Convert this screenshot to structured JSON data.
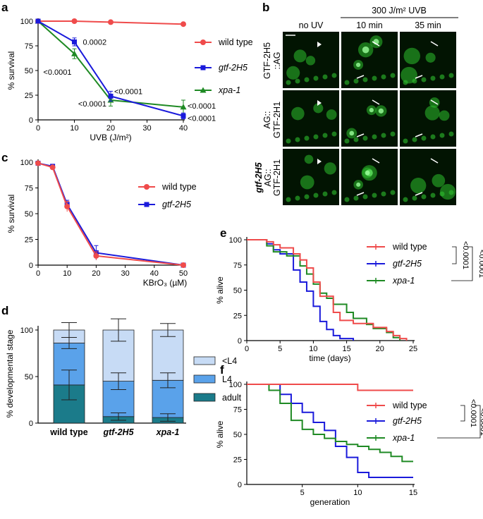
{
  "panels": {
    "a": "a",
    "b": "b",
    "c": "c",
    "d": "d",
    "e": "e",
    "f": "f"
  },
  "colors": {
    "wild_type": "#ef4b4b",
    "gtf_2H5": "#1a1adb",
    "xpa_1": "#1f8a24",
    "l4_dark": "#5aa2ea",
    "l4_light": "#c7dbf5",
    "adult": "#1b7b8a",
    "cell": "#2ec02e"
  },
  "chart_data": [
    {
      "id": "a",
      "type": "line",
      "xlabel": "UVB (J/m²)",
      "ylabel": "% survival",
      "x": [
        0,
        10,
        20,
        40
      ],
      "xlim": [
        0,
        40
      ],
      "ylim": [
        0,
        100
      ],
      "xticks": [
        0,
        10,
        20,
        30,
        40
      ],
      "yticks": [
        0,
        25,
        50,
        75,
        100
      ],
      "series": [
        {
          "name": "wild type",
          "values": [
            100,
            100,
            99,
            97
          ],
          "err": [
            0,
            1,
            1,
            1
          ],
          "marker": "circle",
          "color": "#ef4b4b"
        },
        {
          "name": "gtf-2H5",
          "values": [
            100,
            79,
            24,
            4
          ],
          "err": [
            0,
            4,
            5,
            3
          ],
          "marker": "square",
          "color": "#1a1adb"
        },
        {
          "name": "xpa-1",
          "values": [
            100,
            67,
            20,
            13
          ],
          "err": [
            0,
            5,
            6,
            7
          ],
          "marker": "triangle",
          "color": "#1f8a24"
        }
      ],
      "annotations": [
        "0.0002",
        "<0.0001",
        "<0.0001",
        "<0.0001",
        "<0.0001",
        "<0.0001"
      ]
    },
    {
      "id": "c",
      "type": "line",
      "xlabel": "KBrO₃ (µM)",
      "ylabel": "% survival",
      "x": [
        0,
        5,
        10,
        20,
        50
      ],
      "xlim": [
        0,
        50
      ],
      "ylim": [
        0,
        100
      ],
      "xticks": [
        0,
        10,
        20,
        30,
        40,
        50
      ],
      "yticks": [
        0,
        25,
        50,
        75,
        100
      ],
      "series": [
        {
          "name": "wild type",
          "values": [
            99,
            95,
            57,
            9,
            0
          ],
          "err": [
            1,
            1,
            5,
            4,
            0
          ],
          "marker": "circle",
          "color": "#ef4b4b"
        },
        {
          "name": "gtf-2H5",
          "values": [
            99,
            96,
            59,
            12,
            0
          ],
          "err": [
            1,
            1,
            4,
            7,
            0
          ],
          "marker": "square",
          "color": "#1a1adb"
        }
      ]
    },
    {
      "id": "d",
      "type": "bar",
      "ylabel": "% developmental stage",
      "categories": [
        "wild type",
        "gtf-2H5",
        "xpa-1"
      ],
      "ylim": [
        0,
        100
      ],
      "yticks": [
        0,
        50,
        100
      ],
      "series": [
        {
          "name": "adult",
          "values": [
            41,
            7,
            6
          ],
          "err": [
            16,
            4,
            4
          ]
        },
        {
          "name": "L4",
          "values": [
            45,
            38,
            40
          ],
          "err": [
            6,
            9,
            8
          ]
        },
        {
          "name": "<L4",
          "values": [
            14,
            55,
            54
          ],
          "err": [
            8,
            12,
            7
          ]
        }
      ],
      "legend_order": [
        "<L4",
        "L4",
        "adult"
      ]
    },
    {
      "id": "e",
      "type": "line",
      "xlabel": "time (days)",
      "ylabel": "% alive",
      "xlim": [
        0,
        25
      ],
      "ylim": [
        0,
        100
      ],
      "xticks": [
        0,
        5,
        10,
        15,
        20,
        25
      ],
      "yticks": [
        0,
        25,
        50,
        75,
        100
      ],
      "series": [
        {
          "name": "wild type",
          "color": "#ef4b4b",
          "steps": [
            [
              0,
              100
            ],
            [
              3,
              100
            ],
            [
              3,
              98
            ],
            [
              4,
              98
            ],
            [
              4,
              95
            ],
            [
              5,
              95
            ],
            [
              5,
              92
            ],
            [
              7,
              92
            ],
            [
              7,
              86
            ],
            [
              8,
              86
            ],
            [
              8,
              80
            ],
            [
              9,
              80
            ],
            [
              9,
              72
            ],
            [
              10,
              72
            ],
            [
              10,
              58
            ],
            [
              11,
              58
            ],
            [
              11,
              44
            ],
            [
              13,
              44
            ],
            [
              13,
              28
            ],
            [
              14,
              28
            ],
            [
              14,
              20
            ],
            [
              16,
              20
            ],
            [
              16,
              17
            ],
            [
              19,
              17
            ],
            [
              19,
              13
            ],
            [
              21,
              13
            ],
            [
              21,
              9
            ],
            [
              22,
              9
            ],
            [
              22,
              5
            ],
            [
              23,
              5
            ],
            [
              23,
              2
            ],
            [
              24,
              2
            ],
            [
              24,
              0
            ]
          ]
        },
        {
          "name": "gtf-2H5",
          "color": "#1a1adb",
          "steps": [
            [
              0,
              100
            ],
            [
              3,
              100
            ],
            [
              3,
              96
            ],
            [
              4,
              96
            ],
            [
              4,
              90
            ],
            [
              5,
              90
            ],
            [
              5,
              86
            ],
            [
              7,
              86
            ],
            [
              7,
              70
            ],
            [
              8,
              70
            ],
            [
              8,
              58
            ],
            [
              9,
              58
            ],
            [
              9,
              49
            ],
            [
              10,
              49
            ],
            [
              10,
              34
            ],
            [
              11,
              34
            ],
            [
              11,
              19
            ],
            [
              12,
              19
            ],
            [
              12,
              11
            ],
            [
              13,
              11
            ],
            [
              13,
              5
            ],
            [
              14,
              5
            ],
            [
              14,
              2
            ],
            [
              16,
              2
            ],
            [
              16,
              0
            ]
          ]
        },
        {
          "name": "xpa-1",
          "color": "#1f8a24",
          "steps": [
            [
              0,
              100
            ],
            [
              3,
              100
            ],
            [
              3,
              94
            ],
            [
              4,
              94
            ],
            [
              4,
              88
            ],
            [
              6,
              88
            ],
            [
              6,
              84
            ],
            [
              8,
              84
            ],
            [
              8,
              74
            ],
            [
              9,
              74
            ],
            [
              9,
              66
            ],
            [
              10,
              66
            ],
            [
              10,
              56
            ],
            [
              11,
              56
            ],
            [
              11,
              47
            ],
            [
              12,
              47
            ],
            [
              12,
              42
            ],
            [
              13,
              42
            ],
            [
              13,
              36
            ],
            [
              15,
              36
            ],
            [
              15,
              28
            ],
            [
              16,
              28
            ],
            [
              16,
              22
            ],
            [
              18,
              22
            ],
            [
              18,
              16
            ],
            [
              19,
              16
            ],
            [
              19,
              12
            ],
            [
              21,
              12
            ],
            [
              21,
              8
            ],
            [
              22,
              8
            ],
            [
              22,
              3
            ],
            [
              23,
              3
            ],
            [
              23,
              0
            ]
          ]
        }
      ],
      "stats": [
        "<0.0001",
        "<0.0001"
      ]
    },
    {
      "id": "f",
      "type": "line",
      "xlabel": "generation",
      "ylabel": "% alive",
      "xlim": [
        0,
        15
      ],
      "ylim": [
        0,
        100
      ],
      "xticks": [
        5,
        10,
        15
      ],
      "yticks": [
        0,
        25,
        50,
        75,
        100
      ],
      "series": [
        {
          "name": "wild type",
          "color": "#ef4b4b",
          "steps": [
            [
              0,
              100
            ],
            [
              2,
              100
            ],
            [
              10,
              100
            ],
            [
              10,
              94
            ],
            [
              15,
              94
            ]
          ]
        },
        {
          "name": "gtf-2H5",
          "color": "#1a1adb",
          "steps": [
            [
              2,
              100
            ],
            [
              3,
              100
            ],
            [
              3,
              90
            ],
            [
              4,
              90
            ],
            [
              4,
              81
            ],
            [
              5,
              81
            ],
            [
              5,
              72
            ],
            [
              6,
              72
            ],
            [
              6,
              62
            ],
            [
              7,
              62
            ],
            [
              7,
              54
            ],
            [
              8,
              54
            ],
            [
              8,
              38
            ],
            [
              9,
              38
            ],
            [
              9,
              27
            ],
            [
              10,
              27
            ],
            [
              10,
              12
            ],
            [
              11,
              12
            ],
            [
              11,
              7
            ],
            [
              15,
              7
            ]
          ]
        },
        {
          "name": "xpa-1",
          "color": "#1f8a24",
          "steps": [
            [
              2,
              100
            ],
            [
              2,
              94
            ],
            [
              3,
              94
            ],
            [
              3,
              81
            ],
            [
              4,
              81
            ],
            [
              4,
              64
            ],
            [
              5,
              64
            ],
            [
              5,
              55
            ],
            [
              6,
              55
            ],
            [
              6,
              50
            ],
            [
              7,
              50
            ],
            [
              7,
              46
            ],
            [
              8,
              46
            ],
            [
              8,
              43
            ],
            [
              9,
              43
            ],
            [
              9,
              40
            ],
            [
              10,
              40
            ],
            [
              10,
              38
            ],
            [
              11,
              38
            ],
            [
              11,
              35
            ],
            [
              12,
              35
            ],
            [
              12,
              32
            ],
            [
              13,
              32
            ],
            [
              13,
              28
            ],
            [
              14,
              28
            ],
            [
              14,
              23
            ],
            [
              15,
              23
            ]
          ]
        }
      ],
      "stats": [
        "<0.0001",
        "<0.0001"
      ]
    }
  ],
  "panel_b": {
    "header": "300 J/m² UVB",
    "columns": [
      "no UV",
      "10 min",
      "35 min"
    ],
    "rows": [
      {
        "label_line1": "GTF-2H5",
        "label_line2": "::AG",
        "italic_prefix": ""
      },
      {
        "label_line1": "AG::",
        "label_line2": "GTF-2H1",
        "italic_prefix": ""
      },
      {
        "label_line1": "AG::",
        "label_line2": "GTF-2H1",
        "italic_prefix": "gtf-2H5"
      }
    ]
  }
}
